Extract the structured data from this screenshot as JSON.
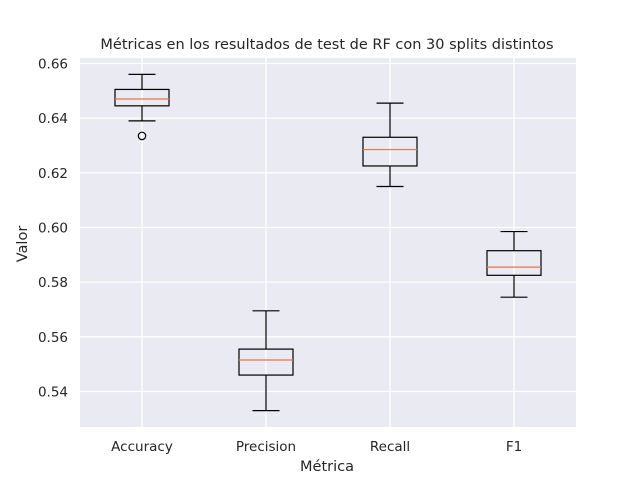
{
  "chart_data": {
    "type": "box",
    "title": "Métricas en los resultados de test de RF con 30 splits distintos",
    "xlabel": "Métrica",
    "ylabel": "Valor",
    "categories": [
      "Accuracy",
      "Precision",
      "Recall",
      "F1"
    ],
    "ylim": [
      0.527,
      0.662
    ],
    "yticks": [
      0.54,
      0.56,
      0.58,
      0.6,
      0.62,
      0.64,
      0.66
    ],
    "ytick_labels": [
      "0.54",
      "0.56",
      "0.58",
      "0.60",
      "0.62",
      "0.64",
      "0.66"
    ],
    "grid": true,
    "boxes": [
      {
        "category": "Accuracy",
        "whisker_low": 0.639,
        "q1": 0.6445,
        "median": 0.647,
        "q3": 0.6505,
        "whisker_high": 0.656,
        "outliers": [
          0.6335
        ]
      },
      {
        "category": "Precision",
        "whisker_low": 0.533,
        "q1": 0.546,
        "median": 0.5515,
        "q3": 0.5555,
        "whisker_high": 0.5695,
        "outliers": []
      },
      {
        "category": "Recall",
        "whisker_low": 0.615,
        "q1": 0.6225,
        "median": 0.6285,
        "q3": 0.633,
        "whisker_high": 0.6455,
        "outliers": []
      },
      {
        "category": "F1",
        "whisker_low": 0.5745,
        "q1": 0.5825,
        "median": 0.5855,
        "q3": 0.5915,
        "whisker_high": 0.5985,
        "outliers": []
      }
    ],
    "colors": {
      "plot_background": "#eaeaf2",
      "grid": "#ffffff",
      "box": "#000000",
      "median": "#e8744a"
    }
  }
}
